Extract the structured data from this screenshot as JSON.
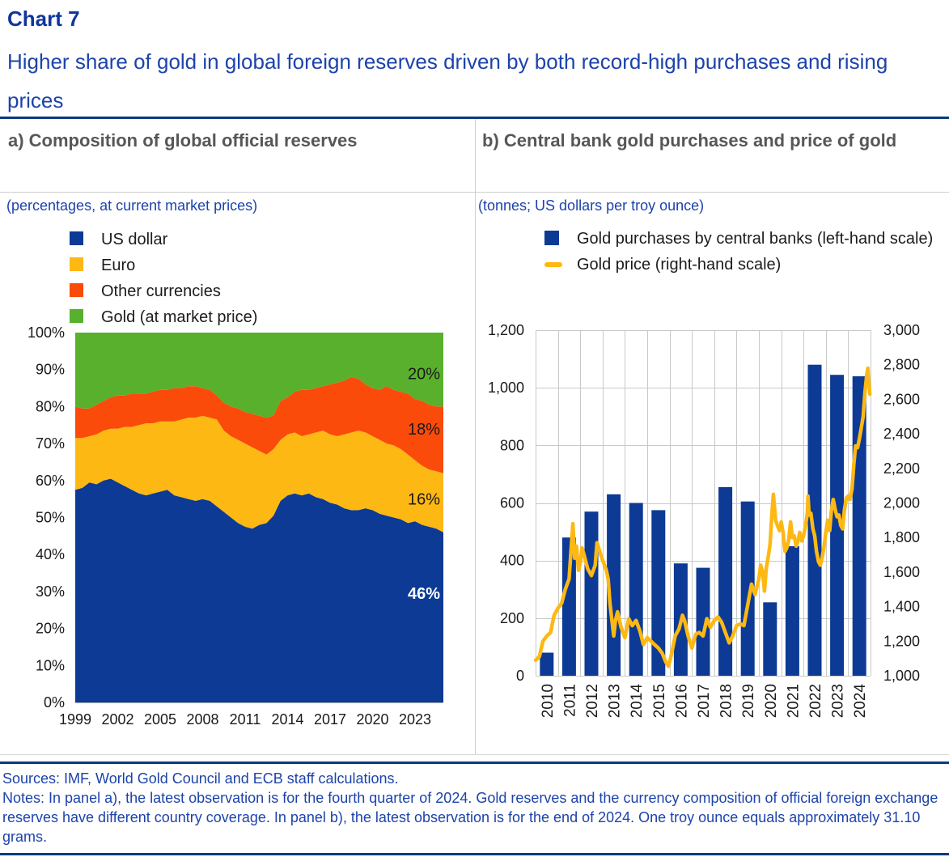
{
  "header": {
    "chart_label": "Chart 7",
    "title": "Higher share of gold in global foreign reserves driven by both record-high purchases and rising prices"
  },
  "panels": {
    "a": {
      "heading": "a) Composition of global official reserves",
      "subtitle": "(percentages, at current market prices)",
      "legend": [
        {
          "label": "US dollar",
          "color": "#0c3a95"
        },
        {
          "label": "Euro",
          "color": "#fdb813"
        },
        {
          "label": "Other currencies",
          "color": "#fa4b0a"
        },
        {
          "label": "Gold (at market price)",
          "color": "#58b02c"
        }
      ]
    },
    "b": {
      "heading": "b) Central bank gold purchases and price of gold",
      "subtitle": "(tonnes; US dollars per troy ounce)",
      "legend": [
        {
          "label": "Gold purchases by central banks (left-hand scale)",
          "swatch": "square",
          "color": "#0c3a95"
        },
        {
          "label": "Gold price (right-hand scale)",
          "swatch": "line",
          "color": "#fdb813"
        }
      ]
    }
  },
  "footer": {
    "sources": "Sources: IMF, World Gold Council and ECB staff calculations.",
    "notes": "Notes: In panel a), the latest observation is for the fourth quarter of 2024. Gold reserves and the currency composition of official foreign exchange reserves have different country coverage. In panel b), the latest observation is for the end of 2024. One troy ounce equals approximately 31.10 grams."
  },
  "colors": {
    "ecb_blue_text": "#1d43ab",
    "title_blue": "#10359c",
    "navy_rule": "#0c3b7d",
    "series_blue": "#0c3a95",
    "series_yellow": "#fdb813",
    "series_orange": "#fa4b0a",
    "series_green": "#58b02c",
    "grid_gray": "#c9c9c9",
    "axis_text": "#1a1a1a"
  },
  "chart_data": [
    {
      "panel": "a",
      "type": "area",
      "stacked": true,
      "title": "Composition of global official reserves",
      "unit": "percent of total reserves",
      "xlim": [
        1999,
        2025
      ],
      "ylim": [
        0,
        100
      ],
      "xticks": [
        1999,
        2002,
        2005,
        2008,
        2011,
        2014,
        2017,
        2020,
        2023
      ],
      "yticks": [
        0,
        10,
        20,
        30,
        40,
        50,
        60,
        70,
        80,
        90,
        100
      ],
      "x": [
        1999.0,
        1999.5,
        2000.0,
        2000.5,
        2001.0,
        2001.5,
        2002.0,
        2002.5,
        2003.0,
        2003.5,
        2004.0,
        2004.5,
        2005.0,
        2005.5,
        2006.0,
        2006.5,
        2007.0,
        2007.5,
        2008.0,
        2008.5,
        2009.0,
        2009.5,
        2010.0,
        2010.5,
        2011.0,
        2011.5,
        2012.0,
        2012.5,
        2013.0,
        2013.5,
        2014.0,
        2014.5,
        2015.0,
        2015.5,
        2016.0,
        2016.5,
        2017.0,
        2017.5,
        2018.0,
        2018.5,
        2019.0,
        2019.5,
        2020.0,
        2020.5,
        2021.0,
        2021.5,
        2022.0,
        2022.5,
        2023.0,
        2023.5,
        2024.0,
        2024.5,
        2025.0
      ],
      "series": [
        {
          "name": "US dollar",
          "color": "#0c3a95",
          "values": [
            57.5,
            58,
            59.5,
            59,
            60,
            60.5,
            59.5,
            58.5,
            57.5,
            56.5,
            56,
            56.5,
            57,
            57.5,
            56,
            55.5,
            55,
            54.5,
            55,
            54.5,
            53,
            51.5,
            50,
            48.5,
            47.5,
            47,
            48,
            48.5,
            50.5,
            54.5,
            56,
            56.5,
            56,
            56.5,
            55.5,
            55,
            54,
            53.5,
            52.5,
            52,
            52,
            52.5,
            52,
            51,
            50.5,
            50,
            49.5,
            48.5,
            49,
            48,
            47.5,
            47,
            46
          ]
        },
        {
          "name": "Euro",
          "color": "#fdb813",
          "values": [
            14,
            13.5,
            12.5,
            13.5,
            13.5,
            13.5,
            14.5,
            16,
            17,
            18.5,
            19.5,
            19,
            19,
            18.5,
            20,
            21,
            22,
            22.5,
            22.5,
            22.5,
            23.5,
            22,
            22,
            22.5,
            22.5,
            22,
            20,
            18.5,
            18,
            16.5,
            16.5,
            16.5,
            16,
            16,
            17.5,
            18.5,
            18.5,
            18.5,
            20,
            21,
            21.5,
            20.5,
            20,
            20,
            19.5,
            19.5,
            19,
            18.5,
            16.5,
            16,
            15.5,
            15.5,
            16
          ]
        },
        {
          "name": "Other currencies",
          "color": "#fa4b0a",
          "values": [
            8.5,
            8,
            7.5,
            8,
            8,
            8.5,
            9,
            8.5,
            9,
            8.5,
            8,
            8.5,
            8.5,
            8.5,
            9,
            8.5,
            8.5,
            8.5,
            7.5,
            7.5,
            6.5,
            7.5,
            8,
            8.5,
            8.5,
            9,
            9.5,
            10,
            9,
            10.5,
            10,
            11,
            12.5,
            12,
            12,
            12,
            13.5,
            14.5,
            14.5,
            15,
            14,
            13,
            13,
            13.5,
            15.5,
            15,
            15.5,
            16.5,
            16.5,
            17.5,
            17.5,
            17.5,
            18
          ]
        },
        {
          "name": "Gold (at market price)",
          "color": "#58b02c",
          "values": [
            20,
            20.5,
            20.5,
            19.5,
            18.5,
            17.5,
            17,
            17,
            16.5,
            16.5,
            16.5,
            16,
            15.5,
            15.5,
            15,
            15,
            14.5,
            14.5,
            15,
            15.5,
            17,
            19,
            20,
            20.5,
            21.5,
            22,
            22.5,
            23,
            22.5,
            18.5,
            17.5,
            16,
            15.5,
            15.5,
            15,
            14.5,
            14,
            13.5,
            13,
            12,
            12.5,
            14,
            15,
            15.5,
            14.5,
            15.5,
            16,
            16.5,
            18,
            18.5,
            19.5,
            20,
            20
          ]
        }
      ],
      "end_labels": [
        {
          "text": "20%",
          "at_pct": 89,
          "color": "#1a1a1a",
          "bold": false
        },
        {
          "text": "18%",
          "at_pct": 74,
          "color": "#1a1a1a",
          "bold": false
        },
        {
          "text": "16%",
          "at_pct": 55,
          "color": "#1a1a1a",
          "bold": false
        },
        {
          "text": "46%",
          "at_pct": 29.5,
          "color": "#ffffff",
          "bold": true
        }
      ]
    },
    {
      "panel": "b",
      "type": "bar+line",
      "title": "Central bank gold purchases and price of gold",
      "left_axis": {
        "label": "tonnes",
        "lim": [
          0,
          1200
        ],
        "ticks": [
          0,
          200,
          400,
          600,
          800,
          1000,
          1200
        ]
      },
      "right_axis": {
        "label": "US dollars per troy ounce",
        "lim": [
          1000,
          3000
        ],
        "ticks": [
          1000,
          1200,
          1400,
          1600,
          1800,
          2000,
          2200,
          2400,
          2600,
          2800,
          3000
        ]
      },
      "bar_series": {
        "name": "Gold purchases by central banks (left-hand scale)",
        "color": "#0c3a95",
        "categories": [
          2010,
          2011,
          2012,
          2013,
          2014,
          2015,
          2016,
          2017,
          2018,
          2019,
          2020,
          2021,
          2022,
          2023,
          2024
        ],
        "values": [
          80,
          480,
          570,
          630,
          600,
          575,
          390,
          375,
          655,
          605,
          255,
          450,
          1080,
          1045,
          1040
        ]
      },
      "line_series": {
        "name": "Gold price (right-hand scale)",
        "color": "#fdb813",
        "x": [
          2010.0,
          2010.17,
          2010.33,
          2010.5,
          2010.67,
          2010.83,
          2011.0,
          2011.17,
          2011.33,
          2011.5,
          2011.67,
          2011.75,
          2011.83,
          2011.92,
          2012.0,
          2012.08,
          2012.17,
          2012.33,
          2012.5,
          2012.67,
          2012.75,
          2012.92,
          2013.0,
          2013.17,
          2013.25,
          2013.33,
          2013.5,
          2013.58,
          2013.67,
          2013.83,
          2014.0,
          2014.17,
          2014.33,
          2014.5,
          2014.67,
          2014.83,
          2015.0,
          2015.17,
          2015.33,
          2015.5,
          2015.67,
          2015.83,
          2015.95,
          2016.08,
          2016.25,
          2016.42,
          2016.58,
          2016.67,
          2016.83,
          2017.0,
          2017.17,
          2017.33,
          2017.5,
          2017.67,
          2017.83,
          2018.0,
          2018.17,
          2018.33,
          2018.5,
          2018.67,
          2018.83,
          2019.0,
          2019.17,
          2019.33,
          2019.5,
          2019.67,
          2019.83,
          2020.0,
          2020.08,
          2020.17,
          2020.25,
          2020.33,
          2020.42,
          2020.5,
          2020.58,
          2020.65,
          2020.75,
          2020.83,
          2020.92,
          2021.0,
          2021.08,
          2021.17,
          2021.25,
          2021.33,
          2021.42,
          2021.5,
          2021.58,
          2021.67,
          2021.75,
          2021.83,
          2021.92,
          2022.0,
          2022.08,
          2022.17,
          2022.2,
          2022.25,
          2022.33,
          2022.42,
          2022.5,
          2022.58,
          2022.67,
          2022.75,
          2022.83,
          2022.92,
          2023.0,
          2023.08,
          2023.17,
          2023.25,
          2023.33,
          2023.42,
          2023.5,
          2023.58,
          2023.67,
          2023.75,
          2023.83,
          2023.92,
          2024.0,
          2024.08,
          2024.17,
          2024.25,
          2024.33,
          2024.42,
          2024.5,
          2024.58,
          2024.67,
          2024.75,
          2024.83,
          2024.88,
          2024.92,
          2024.97
        ],
        "values": [
          1090,
          1110,
          1200,
          1230,
          1250,
          1350,
          1390,
          1420,
          1500,
          1560,
          1880,
          1680,
          1750,
          1610,
          1650,
          1740,
          1700,
          1620,
          1580,
          1640,
          1770,
          1700,
          1670,
          1610,
          1560,
          1420,
          1230,
          1320,
          1370,
          1280,
          1220,
          1330,
          1290,
          1320,
          1260,
          1180,
          1220,
          1200,
          1180,
          1160,
          1130,
          1080,
          1055,
          1120,
          1230,
          1270,
          1350,
          1320,
          1230,
          1160,
          1240,
          1250,
          1230,
          1330,
          1280,
          1320,
          1340,
          1310,
          1250,
          1190,
          1230,
          1290,
          1300,
          1290,
          1410,
          1530,
          1470,
          1560,
          1640,
          1600,
          1490,
          1620,
          1690,
          1760,
          1930,
          2050,
          1900,
          1870,
          1840,
          1890,
          1830,
          1720,
          1740,
          1780,
          1890,
          1800,
          1810,
          1750,
          1780,
          1830,
          1780,
          1810,
          1860,
          1940,
          2040,
          1930,
          1940,
          1850,
          1810,
          1720,
          1660,
          1640,
          1680,
          1750,
          1830,
          1900,
          1840,
          1960,
          2020,
          1960,
          1920,
          1930,
          1870,
          1850,
          1960,
          2030,
          2040,
          2020,
          2080,
          2220,
          2330,
          2320,
          2370,
          2430,
          2500,
          2640,
          2740,
          2780,
          2700,
          2630
        ]
      }
    }
  ]
}
